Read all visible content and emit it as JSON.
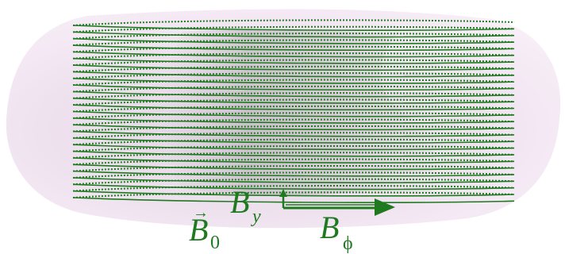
{
  "colors": {
    "field_line": "#1f7a1f",
    "body_fill": "#efe0ef",
    "body_shadow": "#c9bcc9",
    "label": "#1f7a1f"
  },
  "labels": {
    "b0": {
      "letter": "B",
      "sub": "0",
      "vector_arrow": true
    },
    "by": {
      "letter": "B",
      "sub": "y"
    },
    "bphi": {
      "letter": "B",
      "sub": "ϕ"
    }
  },
  "field_lines": {
    "loops": 27
  }
}
